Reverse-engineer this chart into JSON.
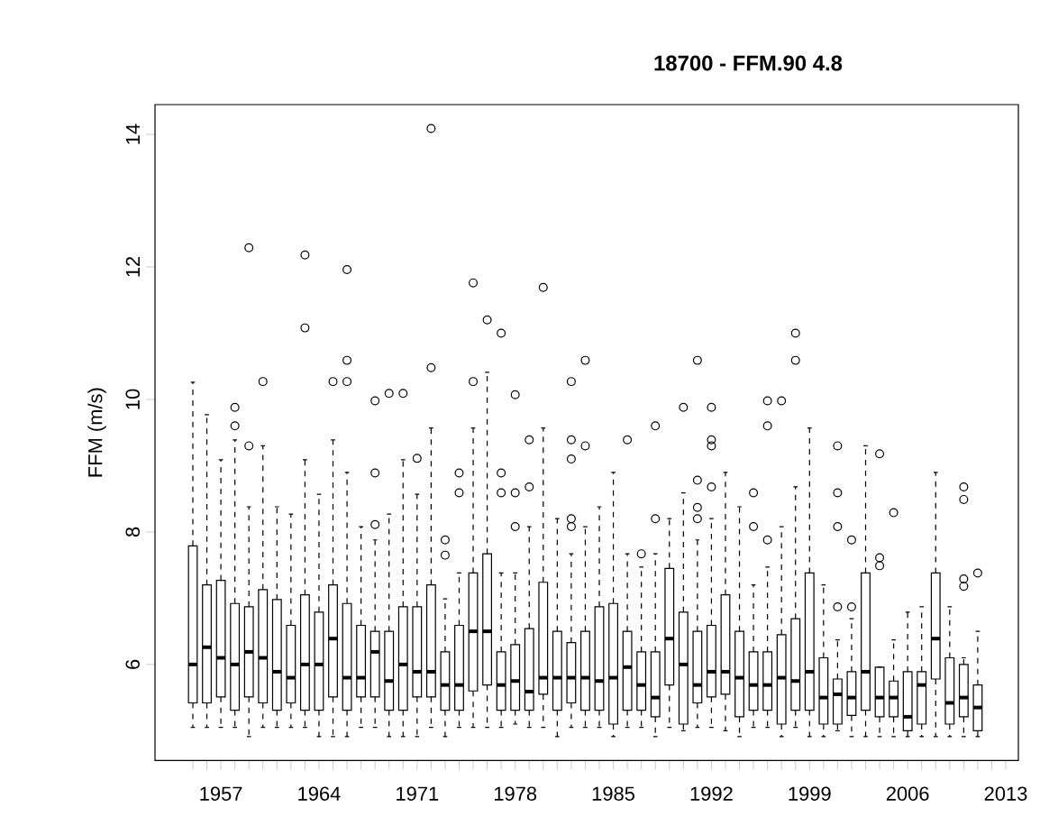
{
  "chart_data": {
    "type": "box",
    "title": "18700 - FFM.90 4.8",
    "ylabel": "FFM (m/s)",
    "categories": [
      null,
      null,
      "1957",
      null,
      null,
      null,
      null,
      null,
      null,
      "1964",
      null,
      null,
      null,
      null,
      null,
      null,
      "1971",
      null,
      null,
      null,
      null,
      null,
      null,
      "1978",
      null,
      null,
      null,
      null,
      null,
      null,
      "1985",
      null,
      null,
      null,
      null,
      null,
      null,
      "1992",
      null,
      null,
      null,
      null,
      null,
      null,
      "1999",
      null,
      null,
      null,
      null,
      null,
      null,
      "2006",
      null,
      null,
      null,
      null,
      null,
      null,
      "2013"
    ],
    "ylim": [
      4.55,
      14.45
    ],
    "yticks": [
      6,
      8,
      10,
      12,
      14
    ],
    "boxes": [
      {
        "low": 5.05,
        "q1": 5.42,
        "median": 6.0,
        "q3": 7.79,
        "high": 10.26
      },
      {
        "low": 5.05,
        "q1": 5.42,
        "median": 6.26,
        "q3": 7.2,
        "high": 9.77
      },
      {
        "low": 5.05,
        "q1": 5.51,
        "median": 6.1,
        "q3": 7.27,
        "high": 9.09
      },
      {
        "low": 5.05,
        "q1": 5.31,
        "median": 6.0,
        "q3": 6.92,
        "high": 9.39,
        "outliers": [
          9.88,
          9.6
        ]
      },
      {
        "low": 4.91,
        "q1": 5.51,
        "median": 6.19,
        "q3": 6.87,
        "high": 8.38,
        "outliers": [
          12.29,
          9.3
        ]
      },
      {
        "low": 5.05,
        "q1": 5.42,
        "median": 6.1,
        "q3": 7.13,
        "high": 9.3,
        "outliers": [
          10.27
        ]
      },
      {
        "low": 5.05,
        "q1": 5.31,
        "median": 5.89,
        "q3": 6.98,
        "high": 8.38
      },
      {
        "low": 5.05,
        "q1": 5.42,
        "median": 5.8,
        "q3": 6.59,
        "high": 8.27
      },
      {
        "low": 5.05,
        "q1": 5.31,
        "median": 6.0,
        "q3": 7.05,
        "high": 9.09,
        "outliers": [
          12.18,
          11.08
        ]
      },
      {
        "low": 4.91,
        "q1": 5.31,
        "median": 6.0,
        "q3": 6.79,
        "high": 8.57
      },
      {
        "low": 4.91,
        "q1": 5.51,
        "median": 6.39,
        "q3": 7.2,
        "high": 9.39,
        "outliers": [
          10.27
        ]
      },
      {
        "low": 4.91,
        "q1": 5.31,
        "median": 5.8,
        "q3": 6.92,
        "high": 8.9,
        "outliers": [
          11.96,
          10.59,
          10.27
        ]
      },
      {
        "low": 5.05,
        "q1": 5.51,
        "median": 5.8,
        "q3": 6.59,
        "high": 8.08
      },
      {
        "low": 5.05,
        "q1": 5.51,
        "median": 6.19,
        "q3": 6.5,
        "high": 7.88,
        "outliers": [
          8.11,
          8.89,
          9.98
        ]
      },
      {
        "low": 4.91,
        "q1": 5.31,
        "median": 5.75,
        "q3": 6.5,
        "high": 8.27,
        "outliers": [
          10.09
        ]
      },
      {
        "low": 4.91,
        "q1": 5.31,
        "median": 6.0,
        "q3": 6.87,
        "high": 9.09,
        "outliers": [
          10.09
        ]
      },
      {
        "low": 4.91,
        "q1": 5.51,
        "median": 5.89,
        "q3": 6.87,
        "high": 8.57,
        "outliers": [
          9.11
        ]
      },
      {
        "low": 5.05,
        "q1": 5.51,
        "median": 5.89,
        "q3": 7.2,
        "high": 9.57,
        "outliers": [
          14.09,
          10.48
        ]
      },
      {
        "low": 4.91,
        "q1": 5.31,
        "median": 5.69,
        "q3": 6.19,
        "high": 6.99,
        "outliers": [
          7.88,
          7.65
        ]
      },
      {
        "low": 5.05,
        "q1": 5.31,
        "median": 5.69,
        "q3": 6.59,
        "high": 7.38,
        "outliers": [
          8.89,
          8.59
        ]
      },
      {
        "low": 5.05,
        "q1": 5.6,
        "median": 6.5,
        "q3": 7.38,
        "high": 9.57,
        "outliers": [
          11.76,
          10.27
        ]
      },
      {
        "low": 5.05,
        "q1": 5.69,
        "median": 6.5,
        "q3": 7.67,
        "high": 10.41,
        "outliers": [
          11.2
        ]
      },
      {
        "low": 5.05,
        "q1": 5.31,
        "median": 5.69,
        "q3": 6.19,
        "high": 7.38,
        "outliers": [
          11.0,
          8.89,
          8.59
        ]
      },
      {
        "low": 5.1,
        "q1": 5.31,
        "median": 5.75,
        "q3": 6.3,
        "high": 7.38,
        "outliers": [
          10.07,
          8.59,
          8.08
        ]
      },
      {
        "low": 5.05,
        "q1": 5.31,
        "median": 5.59,
        "q3": 6.54,
        "high": 8.08,
        "outliers": [
          9.39,
          8.68
        ]
      },
      {
        "low": 5.05,
        "q1": 5.55,
        "median": 5.8,
        "q3": 7.24,
        "high": 9.57,
        "outliers": [
          11.69
        ]
      },
      {
        "low": 4.91,
        "q1": 5.31,
        "median": 5.8,
        "q3": 6.5,
        "high": 8.2
      },
      {
        "low": 5.05,
        "q1": 5.42,
        "median": 5.8,
        "q3": 6.33,
        "high": 7.67,
        "outliers": [
          10.27,
          9.39,
          9.1,
          8.2,
          8.08
        ]
      },
      {
        "low": 5.05,
        "q1": 5.31,
        "median": 5.8,
        "q3": 6.5,
        "high": 8.08,
        "outliers": [
          10.59,
          9.3
        ]
      },
      {
        "low": 5.05,
        "q1": 5.31,
        "median": 5.75,
        "q3": 6.87,
        "high": 8.38
      },
      {
        "low": 4.91,
        "q1": 5.1,
        "median": 5.8,
        "q3": 6.92,
        "high": 8.9
      },
      {
        "low": 5.05,
        "q1": 5.31,
        "median": 5.96,
        "q3": 6.5,
        "high": 7.67,
        "outliers": [
          9.39
        ]
      },
      {
        "low": 5.05,
        "q1": 5.31,
        "median": 5.69,
        "q3": 6.19,
        "high": 7.47,
        "outliers": [
          7.67
        ]
      },
      {
        "low": 4.91,
        "q1": 5.21,
        "median": 5.5,
        "q3": 6.19,
        "high": 7.67,
        "outliers": [
          9.6,
          8.2
        ]
      },
      {
        "low": 5.05,
        "q1": 5.69,
        "median": 6.39,
        "q3": 7.45,
        "high": 8.2
      },
      {
        "low": 5.0,
        "q1": 5.1,
        "median": 6.0,
        "q3": 6.79,
        "high": 8.59,
        "outliers": [
          9.88
        ]
      },
      {
        "low": 5.05,
        "q1": 5.42,
        "median": 5.69,
        "q3": 6.5,
        "high": 7.88,
        "outliers": [
          10.59,
          8.78,
          8.37,
          8.2
        ]
      },
      {
        "low": 5.05,
        "q1": 5.51,
        "median": 5.89,
        "q3": 6.59,
        "high": 8.2,
        "outliers": [
          9.88,
          9.39,
          9.3,
          8.68
        ]
      },
      {
        "low": 5.0,
        "q1": 5.55,
        "median": 5.89,
        "q3": 7.05,
        "high": 8.9
      },
      {
        "low": 4.91,
        "q1": 5.21,
        "median": 5.8,
        "q3": 6.5,
        "high": 8.38
      },
      {
        "low": 5.05,
        "q1": 5.31,
        "median": 5.69,
        "q3": 6.19,
        "high": 7.2,
        "outliers": [
          8.59,
          8.08
        ]
      },
      {
        "low": 5.05,
        "q1": 5.31,
        "median": 5.69,
        "q3": 6.19,
        "high": 7.47,
        "outliers": [
          9.98,
          9.6,
          7.88
        ]
      },
      {
        "low": 4.91,
        "q1": 5.1,
        "median": 5.8,
        "q3": 6.45,
        "high": 8.08,
        "outliers": [
          9.98
        ]
      },
      {
        "low": 5.05,
        "q1": 5.31,
        "median": 5.75,
        "q3": 6.69,
        "high": 8.68,
        "outliers": [
          11.0,
          10.59
        ]
      },
      {
        "low": 4.91,
        "q1": 5.31,
        "median": 5.89,
        "q3": 7.38,
        "high": 9.57
      },
      {
        "low": 4.91,
        "q1": 5.1,
        "median": 5.5,
        "q3": 6.1,
        "high": 7.2
      },
      {
        "low": 5.0,
        "q1": 5.1,
        "median": 5.55,
        "q3": 5.78,
        "high": 6.37,
        "outliers": [
          9.3,
          8.59,
          8.08,
          6.87
        ]
      },
      {
        "low": 4.91,
        "q1": 5.23,
        "median": 5.5,
        "q3": 5.89,
        "high": 6.69,
        "outliers": [
          7.88,
          6.87
        ]
      },
      {
        "low": 4.91,
        "q1": 5.31,
        "median": 5.89,
        "q3": 7.38,
        "high": 9.3
      },
      {
        "low": 4.91,
        "q1": 5.21,
        "median": 5.5,
        "q3": 5.96,
        "high": 5.96,
        "outliers": [
          9.18,
          7.61,
          7.49
        ]
      },
      {
        "low": 4.91,
        "q1": 5.21,
        "median": 5.5,
        "q3": 5.75,
        "high": 6.37,
        "outliers": [
          8.29
        ]
      },
      {
        "low": 4.91,
        "q1": 5.0,
        "median": 5.21,
        "q3": 5.89,
        "high": 6.79
      },
      {
        "low": 4.91,
        "q1": 5.1,
        "median": 5.69,
        "q3": 5.89,
        "high": 6.87
      },
      {
        "low": 4.91,
        "q1": 5.78,
        "median": 6.39,
        "q3": 7.38,
        "high": 8.9
      },
      {
        "low": 4.91,
        "q1": 5.1,
        "median": 5.42,
        "q3": 6.1,
        "high": 6.87
      },
      {
        "low": 4.91,
        "q1": 5.21,
        "median": 5.5,
        "q3": 6.0,
        "high": 6.1,
        "outliers": [
          8.68,
          8.49,
          7.29,
          7.18
        ]
      },
      {
        "low": 4.91,
        "q1": 5.0,
        "median": 5.35,
        "q3": 5.69,
        "high": 6.5,
        "outliers": [
          7.38
        ]
      },
      null,
      null
    ]
  }
}
